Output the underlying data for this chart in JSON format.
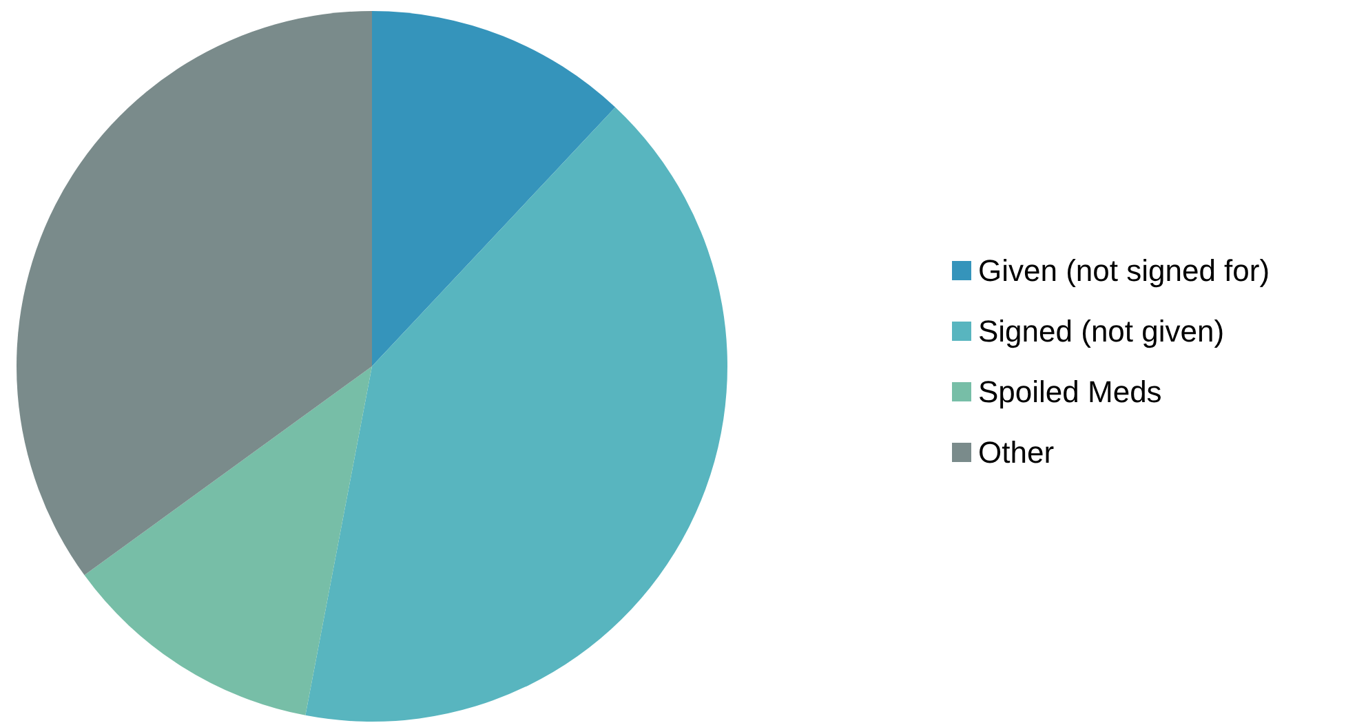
{
  "chart_data": {
    "type": "pie",
    "categories": [
      "Given (not signed for)",
      "Signed (not given)",
      "Spoiled Meds",
      "Other"
    ],
    "values": [
      12,
      41,
      12,
      35
    ],
    "colors": [
      "#3594bb",
      "#58b5bf",
      "#77bea7",
      "#7a8b8b"
    ],
    "legend": "right"
  }
}
